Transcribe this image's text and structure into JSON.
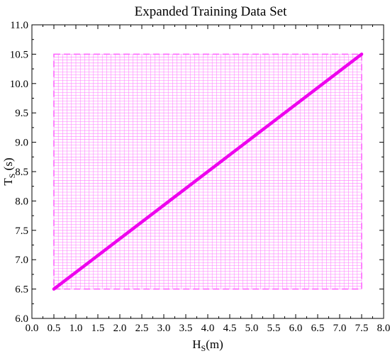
{
  "chart_data": {
    "type": "line",
    "title": "Expanded Training Data Set",
    "xlabel": {
      "main": "H",
      "sub": "S",
      "unit": "(m)"
    },
    "ylabel": {
      "main": "T",
      "sub": "S",
      "unit": " (s)"
    },
    "xlim": [
      0.0,
      8.0
    ],
    "ylim": [
      6.0,
      11.0
    ],
    "x_ticks": [
      0.0,
      0.5,
      1.0,
      1.5,
      2.0,
      2.5,
      3.0,
      3.5,
      4.0,
      4.5,
      5.0,
      5.5,
      6.0,
      6.5,
      7.0,
      7.5,
      8.0
    ],
    "x_tick_labels": [
      "0.0",
      "0.5",
      "1.0",
      "1.5",
      "2.0",
      "2.5",
      "3.0",
      "3.5",
      "4.0",
      "4.5",
      "5.0",
      "5.5",
      "6.0",
      "6.5",
      "7.0",
      "7.5",
      "8.0"
    ],
    "y_ticks": [
      6.0,
      6.5,
      7.0,
      7.5,
      8.0,
      8.5,
      9.0,
      9.5,
      10.0,
      10.5,
      11.0
    ],
    "y_tick_labels": [
      "6.0",
      "6.5",
      "7.0",
      "7.5",
      "8.0",
      "8.5",
      "9.0",
      "9.5",
      "10.0",
      "10.5",
      "11.0"
    ],
    "grid": false,
    "region": {
      "x_range": [
        0.5,
        7.5
      ],
      "y_range": [
        6.5,
        10.5
      ],
      "mesh_step_x": 0.1,
      "mesh_step_y": 0.05,
      "color": "#ff66ff"
    },
    "series": [
      {
        "x": [
          0.5,
          7.5
        ],
        "y": [
          6.5,
          10.5
        ],
        "color": "#ee00ee"
      }
    ]
  }
}
